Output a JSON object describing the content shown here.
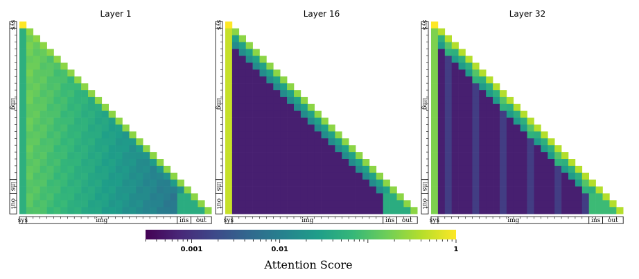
{
  "chart_data": [
    {
      "type": "heatmap",
      "title": "Layer 1",
      "segments": [
        "sys",
        "img",
        "ins",
        "out"
      ],
      "gradient": {
        "start": 0.2,
        "end": 0.006,
        "diag": 0.03
      },
      "first_column": 0.05
    },
    {
      "type": "heatmap",
      "title": "Layer 16",
      "segments": [
        "sys",
        "img",
        "ins",
        "out"
      ],
      "gradient": {
        "start": 0.0006,
        "end": 0.0006,
        "diag": 0.03
      },
      "first_column": 0.5
    },
    {
      "type": "heatmap",
      "title": "Layer 32",
      "segments": [
        "sys",
        "img",
        "ins",
        "out"
      ],
      "gradient": {
        "start": 0.0006,
        "end": 0.0006,
        "diag": 0.05
      },
      "first_column": 0.2
    }
  ],
  "colorbar": {
    "label": "Attention Score",
    "scale": "log",
    "ticks": [
      {
        "label": "0.001",
        "value": 0.001
      },
      {
        "label": "0.01",
        "value": 0.01
      },
      {
        "label": "1",
        "value": 1
      }
    ],
    "range": [
      0.0003,
      1
    ],
    "colormap": "viridis"
  },
  "colors": {
    "viridis": [
      "#440154",
      "#482878",
      "#3e4989",
      "#31688e",
      "#26828e",
      "#1f9e89",
      "#35b779",
      "#6ece58",
      "#b5de2b",
      "#fde725"
    ]
  }
}
